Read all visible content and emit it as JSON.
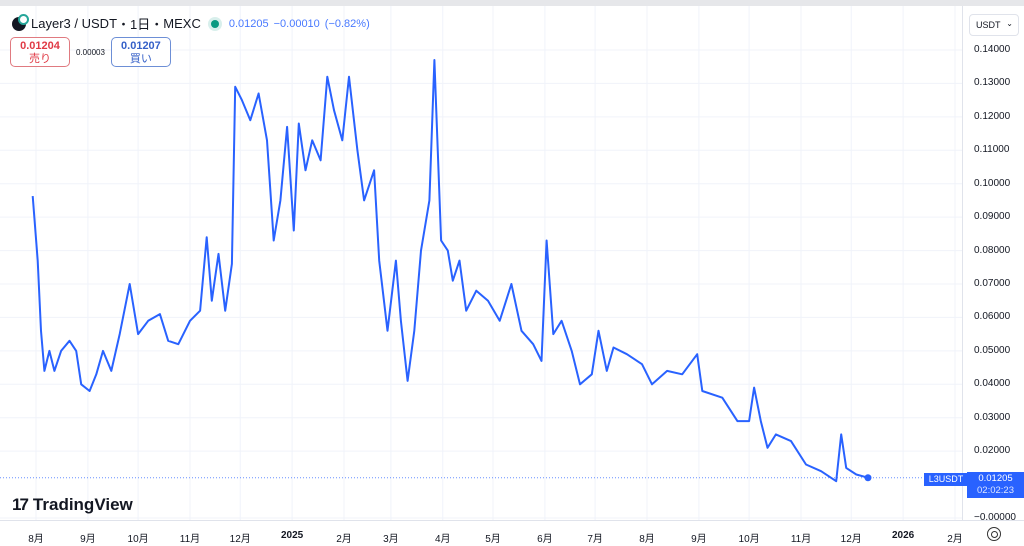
{
  "header": {
    "symbol": "Layer3",
    "pair_sep": "/",
    "quote": "USDT",
    "interval": "1日",
    "exchange": "MEXC",
    "sep": "・",
    "last": "0.01205",
    "change": "−0.00010",
    "change_pct": "(−0.82%)"
  },
  "trade": {
    "sell_price": "0.01204",
    "sell_label": "売り",
    "spread": "0.00003",
    "buy_price": "0.01207",
    "buy_label": "買い"
  },
  "axis": {
    "currency": "USDT",
    "settings_icon": "gear-icon"
  },
  "price_tag": {
    "symbol": "L3USDT",
    "price": "0.01205",
    "countdown": "02:02:23"
  },
  "brand": "TradingView",
  "colors": {
    "line": "#2962ff",
    "grid": "#f0f3fa",
    "up": "#089981",
    "down": "#e03a45"
  },
  "chart_data": {
    "type": "line",
    "ylim": [
      0,
      0.14
    ],
    "yticks": [
      "0.14000",
      "0.13000",
      "0.12000",
      "0.11000",
      "0.10000",
      "0.09000",
      "0.08000",
      "0.07000",
      "0.06000",
      "0.05000",
      "0.04000",
      "0.03000",
      "0.02000",
      "−0.00000"
    ],
    "xticks": [
      {
        "label": "8月",
        "date": "2024-08-01"
      },
      {
        "label": "9月",
        "date": "2024-09-01"
      },
      {
        "label": "10月",
        "date": "2024-10-01"
      },
      {
        "label": "11月",
        "date": "2024-11-01"
      },
      {
        "label": "12月",
        "date": "2024-12-01"
      },
      {
        "label": "2025",
        "date": "2025-01-01",
        "bold": true
      },
      {
        "label": "2月",
        "date": "2025-02-01"
      },
      {
        "label": "3月",
        "date": "2025-03-01"
      },
      {
        "label": "4月",
        "date": "2025-04-01"
      },
      {
        "label": "5月",
        "date": "2025-05-01"
      },
      {
        "label": "6月",
        "date": "2025-06-01"
      },
      {
        "label": "7月",
        "date": "2025-07-01"
      },
      {
        "label": "8月",
        "date": "2025-08-01"
      },
      {
        "label": "9月",
        "date": "2025-09-01"
      },
      {
        "label": "10月",
        "date": "2025-10-01"
      },
      {
        "label": "11月",
        "date": "2025-11-01"
      },
      {
        "label": "12月",
        "date": "2025-12-01"
      },
      {
        "label": "2026",
        "date": "2026-01-01",
        "bold": true
      },
      {
        "label": "2月",
        "date": "2026-02-01"
      }
    ],
    "series": [
      {
        "points": [
          [
            "2024-07-30",
            0.0963
          ],
          [
            "2024-08-02",
            0.077
          ],
          [
            "2024-08-04",
            0.056
          ],
          [
            "2024-08-06",
            0.044
          ],
          [
            "2024-08-09",
            0.05
          ],
          [
            "2024-08-12",
            0.044
          ],
          [
            "2024-08-16",
            0.05
          ],
          [
            "2024-08-21",
            0.053
          ],
          [
            "2024-08-25",
            0.05
          ],
          [
            "2024-08-28",
            0.04
          ],
          [
            "2024-09-02",
            0.038
          ],
          [
            "2024-09-06",
            0.043
          ],
          [
            "2024-09-10",
            0.05
          ],
          [
            "2024-09-15",
            0.044
          ],
          [
            "2024-09-20",
            0.055
          ],
          [
            "2024-09-26",
            0.07
          ],
          [
            "2024-10-01",
            0.055
          ],
          [
            "2024-10-07",
            0.059
          ],
          [
            "2024-10-14",
            0.061
          ],
          [
            "2024-10-19",
            0.053
          ],
          [
            "2024-10-25",
            0.052
          ],
          [
            "2024-11-01",
            0.059
          ],
          [
            "2024-11-07",
            0.062
          ],
          [
            "2024-11-11",
            0.084
          ],
          [
            "2024-11-14",
            0.065
          ],
          [
            "2024-11-18",
            0.079
          ],
          [
            "2024-11-22",
            0.062
          ],
          [
            "2024-11-26",
            0.076
          ],
          [
            "2024-11-28",
            0.129
          ],
          [
            "2024-12-02",
            0.125
          ],
          [
            "2024-12-07",
            0.119
          ],
          [
            "2024-12-12",
            0.127
          ],
          [
            "2024-12-17",
            0.113
          ],
          [
            "2024-12-21",
            0.083
          ],
          [
            "2024-12-25",
            0.095
          ],
          [
            "2024-12-29",
            0.117
          ],
          [
            "2025-01-02",
            0.086
          ],
          [
            "2025-01-05",
            0.118
          ],
          [
            "2025-01-09",
            0.104
          ],
          [
            "2025-01-13",
            0.113
          ],
          [
            "2025-01-18",
            0.107
          ],
          [
            "2025-01-22",
            0.132
          ],
          [
            "2025-01-26",
            0.122
          ],
          [
            "2025-01-31",
            0.113
          ],
          [
            "2025-02-04",
            0.132
          ],
          [
            "2025-02-09",
            0.11
          ],
          [
            "2025-02-13",
            0.095
          ],
          [
            "2025-02-19",
            0.104
          ],
          [
            "2025-02-22",
            0.077
          ],
          [
            "2025-02-27",
            0.056
          ],
          [
            "2025-03-04",
            0.077
          ],
          [
            "2025-03-07",
            0.059
          ],
          [
            "2025-03-11",
            0.041
          ],
          [
            "2025-03-15",
            0.056
          ],
          [
            "2025-03-19",
            0.08
          ],
          [
            "2025-03-24",
            0.095
          ],
          [
            "2025-03-27",
            0.137
          ],
          [
            "2025-03-31",
            0.083
          ],
          [
            "2025-04-04",
            0.08
          ],
          [
            "2025-04-07",
            0.071
          ],
          [
            "2025-04-11",
            0.077
          ],
          [
            "2025-04-15",
            0.062
          ],
          [
            "2025-04-21",
            0.068
          ],
          [
            "2025-04-28",
            0.065
          ],
          [
            "2025-05-05",
            0.059
          ],
          [
            "2025-05-12",
            0.07
          ],
          [
            "2025-05-18",
            0.056
          ],
          [
            "2025-05-25",
            0.052
          ],
          [
            "2025-05-30",
            0.047
          ],
          [
            "2025-06-02",
            0.083
          ],
          [
            "2025-06-06",
            0.055
          ],
          [
            "2025-06-11",
            0.059
          ],
          [
            "2025-06-17",
            0.05
          ],
          [
            "2025-06-22",
            0.04
          ],
          [
            "2025-06-29",
            0.043
          ],
          [
            "2025-07-03",
            0.056
          ],
          [
            "2025-07-08",
            0.044
          ],
          [
            "2025-07-12",
            0.051
          ],
          [
            "2025-07-20",
            0.049
          ],
          [
            "2025-07-29",
            0.046
          ],
          [
            "2025-08-04",
            0.04
          ],
          [
            "2025-08-13",
            0.044
          ],
          [
            "2025-08-22",
            0.043
          ],
          [
            "2025-08-31",
            0.049
          ],
          [
            "2025-09-03",
            0.038
          ],
          [
            "2025-09-15",
            0.036
          ],
          [
            "2025-09-24",
            0.029
          ],
          [
            "2025-10-01",
            0.029
          ],
          [
            "2025-10-04",
            0.039
          ],
          [
            "2025-10-08",
            0.029
          ],
          [
            "2025-10-12",
            0.021
          ],
          [
            "2025-10-17",
            0.025
          ],
          [
            "2025-10-26",
            0.023
          ],
          [
            "2025-11-04",
            0.016
          ],
          [
            "2025-11-13",
            0.014
          ],
          [
            "2025-11-22",
            0.011
          ],
          [
            "2025-11-25",
            0.025
          ],
          [
            "2025-11-28",
            0.015
          ],
          [
            "2025-12-04",
            0.013
          ],
          [
            "2025-12-11",
            0.01205
          ]
        ]
      }
    ],
    "last_value": 0.01205,
    "grid": true
  }
}
